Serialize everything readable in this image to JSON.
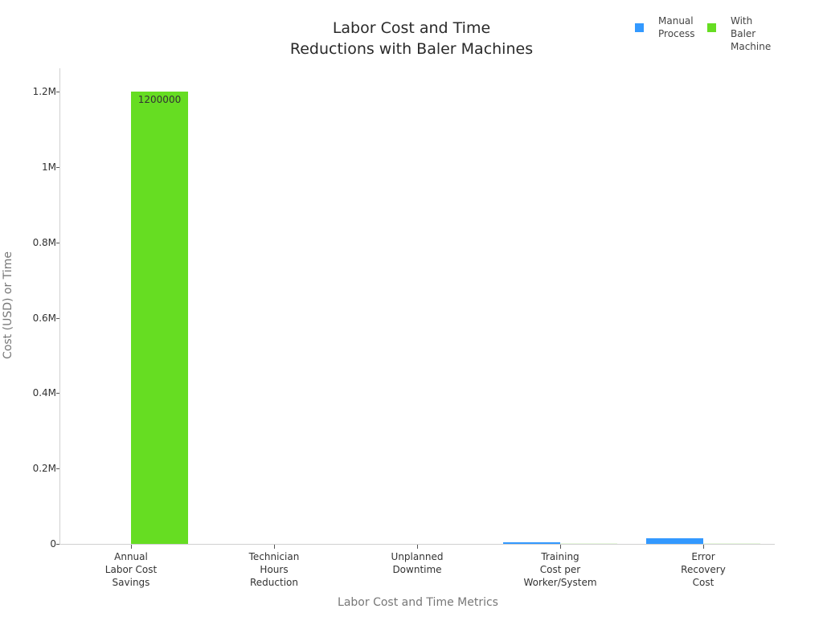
{
  "chart_data": {
    "type": "bar",
    "title": "Labor Cost and Time\nReductions with Baler Machines",
    "title_lines": [
      "Labor Cost and Time",
      "Reductions with Baler Machines"
    ],
    "xlabel": "Labor Cost and Time Metrics",
    "ylabel": "Cost (USD) or Time",
    "categories": [
      "Annual Labor Cost Savings",
      "Technician Hours Reduction",
      "Unplanned Downtime",
      "Training Cost per Worker/System",
      "Error Recovery Cost"
    ],
    "category_label_lines": [
      "Annual\nLabor Cost\nSavings",
      "Technician\nHours\nReduction",
      "Unplanned\nDowntime",
      "Training\nCost per\nWorker/System",
      "Error\nRecovery\nCost"
    ],
    "series": [
      {
        "name": "Manual Process",
        "color": "#3399FF",
        "values": [
          0,
          0,
          0,
          5000,
          15000
        ]
      },
      {
        "name": "With Baler Machine",
        "color": "#66DD22",
        "values": [
          1200000,
          0,
          0,
          1000,
          500
        ]
      }
    ],
    "data_labels": [
      "1200000"
    ],
    "ylim": [
      0,
      1260000
    ],
    "yticks": [
      0,
      200000,
      400000,
      600000,
      800000,
      1000000,
      1200000
    ],
    "ytick_labels": [
      "0",
      "0.2M",
      "0.4M",
      "0.6M",
      "0.8M",
      "1M",
      "1.2M"
    ],
    "grid": false,
    "legend_position": "top-right"
  },
  "legend": {
    "manual_label": "Manual\nProcess",
    "baler_label": "With\nBaler\nMachine",
    "manual_color": "#3399FF",
    "baler_color": "#66DD22"
  }
}
